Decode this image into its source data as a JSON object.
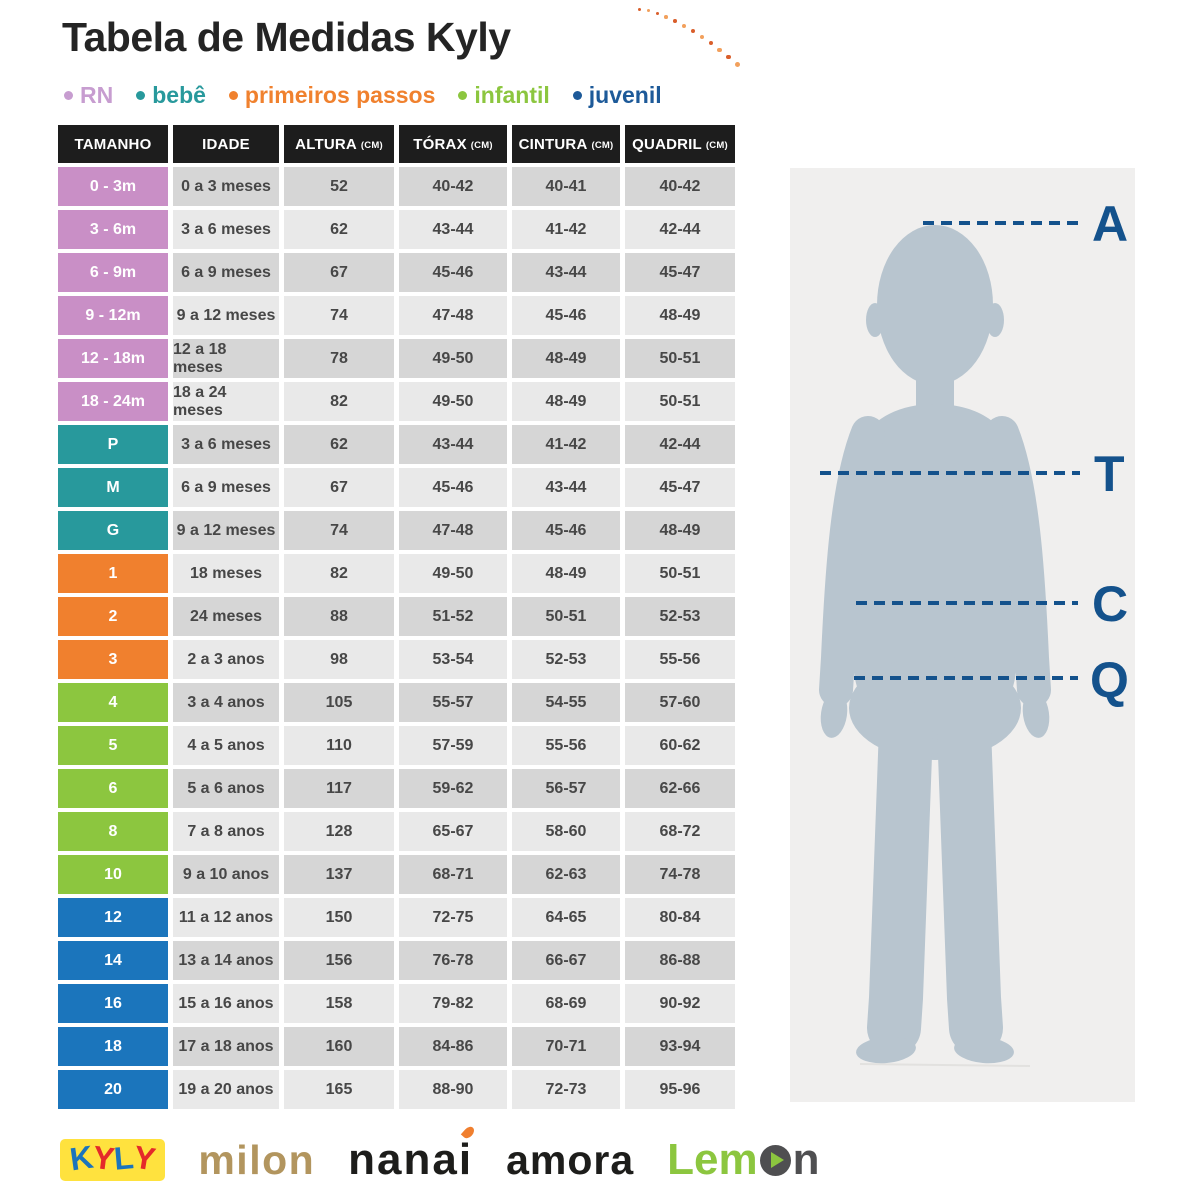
{
  "title": "Tabela de Medidas Kyly",
  "legend": [
    {
      "label": "RN",
      "color": "#c79dd0"
    },
    {
      "label": "bebê",
      "color": "#28999c"
    },
    {
      "label": "primeiros passos",
      "color": "#f0812e"
    },
    {
      "label": "infantil",
      "color": "#8cc63f"
    },
    {
      "label": "juvenil",
      "color": "#1d5a99"
    }
  ],
  "table": {
    "columns": [
      {
        "label": "TAMANHO",
        "unit": ""
      },
      {
        "label": "IDADE",
        "unit": ""
      },
      {
        "label": "ALTURA",
        "unit": "(CM)"
      },
      {
        "label": "TÓRAX",
        "unit": "(CM)"
      },
      {
        "label": "CINTURA",
        "unit": "(CM)"
      },
      {
        "label": "QUADRIL",
        "unit": "(CM)"
      }
    ],
    "group_colors": {
      "rn": "#c98fc6",
      "bebe": "#28999c",
      "pp": "#f0802e",
      "infantil": "#8cc63f",
      "juvenil": "#1b75bc"
    },
    "row_shades": {
      "dark": "#d6d6d6",
      "light": "#e9e9e9"
    },
    "rows": [
      {
        "size": "0 - 3m",
        "group": "rn",
        "idade": "0 a 3 meses",
        "altura": "52",
        "torax": "40-42",
        "cintura": "40-41",
        "quadril": "40-42"
      },
      {
        "size": "3 - 6m",
        "group": "rn",
        "idade": "3 a 6 meses",
        "altura": "62",
        "torax": "43-44",
        "cintura": "41-42",
        "quadril": "42-44"
      },
      {
        "size": "6 - 9m",
        "group": "rn",
        "idade": "6 a 9 meses",
        "altura": "67",
        "torax": "45-46",
        "cintura": "43-44",
        "quadril": "45-47"
      },
      {
        "size": "9 - 12m",
        "group": "rn",
        "idade": "9 a 12 meses",
        "altura": "74",
        "torax": "47-48",
        "cintura": "45-46",
        "quadril": "48-49"
      },
      {
        "size": "12 - 18m",
        "group": "rn",
        "idade": "12 a 18 meses",
        "altura": "78",
        "torax": "49-50",
        "cintura": "48-49",
        "quadril": "50-51"
      },
      {
        "size": "18 - 24m",
        "group": "rn",
        "idade": "18 a 24 meses",
        "altura": "82",
        "torax": "49-50",
        "cintura": "48-49",
        "quadril": "50-51"
      },
      {
        "size": "P",
        "group": "bebe",
        "idade": "3 a 6 meses",
        "altura": "62",
        "torax": "43-44",
        "cintura": "41-42",
        "quadril": "42-44"
      },
      {
        "size": "M",
        "group": "bebe",
        "idade": "6 a 9 meses",
        "altura": "67",
        "torax": "45-46",
        "cintura": "43-44",
        "quadril": "45-47"
      },
      {
        "size": "G",
        "group": "bebe",
        "idade": "9 a 12 meses",
        "altura": "74",
        "torax": "47-48",
        "cintura": "45-46",
        "quadril": "48-49"
      },
      {
        "size": "1",
        "group": "pp",
        "idade": "18 meses",
        "altura": "82",
        "torax": "49-50",
        "cintura": "48-49",
        "quadril": "50-51"
      },
      {
        "size": "2",
        "group": "pp",
        "idade": "24 meses",
        "altura": "88",
        "torax": "51-52",
        "cintura": "50-51",
        "quadril": "52-53"
      },
      {
        "size": "3",
        "group": "pp",
        "idade": "2 a 3 anos",
        "altura": "98",
        "torax": "53-54",
        "cintura": "52-53",
        "quadril": "55-56"
      },
      {
        "size": "4",
        "group": "infantil",
        "idade": "3 a 4 anos",
        "altura": "105",
        "torax": "55-57",
        "cintura": "54-55",
        "quadril": "57-60"
      },
      {
        "size": "5",
        "group": "infantil",
        "idade": "4 a 5 anos",
        "altura": "110",
        "torax": "57-59",
        "cintura": "55-56",
        "quadril": "60-62"
      },
      {
        "size": "6",
        "group": "infantil",
        "idade": "5 a 6 anos",
        "altura": "117",
        "torax": "59-62",
        "cintura": "56-57",
        "quadril": "62-66"
      },
      {
        "size": "8",
        "group": "infantil",
        "idade": "7 a 8 anos",
        "altura": "128",
        "torax": "65-67",
        "cintura": "58-60",
        "quadril": "68-72"
      },
      {
        "size": "10",
        "group": "infantil",
        "idade": "9 a 10 anos",
        "altura": "137",
        "torax": "68-71",
        "cintura": "62-63",
        "quadril": "74-78"
      },
      {
        "size": "12",
        "group": "juvenil",
        "idade": "11 a 12 anos",
        "altura": "150",
        "torax": "72-75",
        "cintura": "64-65",
        "quadril": "80-84"
      },
      {
        "size": "14",
        "group": "juvenil",
        "idade": "13 a 14 anos",
        "altura": "156",
        "torax": "76-78",
        "cintura": "66-67",
        "quadril": "86-88"
      },
      {
        "size": "16",
        "group": "juvenil",
        "idade": "15 a 16 anos",
        "altura": "158",
        "torax": "79-82",
        "cintura": "68-69",
        "quadril": "90-92"
      },
      {
        "size": "18",
        "group": "juvenil",
        "idade": "17 a 18 anos",
        "altura": "160",
        "torax": "84-86",
        "cintura": "70-71",
        "quadril": "93-94"
      },
      {
        "size": "20",
        "group": "juvenil",
        "idade": "19 a 20 anos",
        "altura": "165",
        "torax": "88-90",
        "cintura": "72-73",
        "quadril": "95-96"
      }
    ]
  },
  "figure": {
    "labels": [
      "A",
      "T",
      "C",
      "Q"
    ],
    "panel_color": "#f0efee",
    "silhouette_color": "#b8c5cf",
    "line_color": "#14528c"
  },
  "logos": {
    "kyly": {
      "box_color": "#ffe23e",
      "letters": [
        {
          "ch": "K",
          "color": "#1b74bc"
        },
        {
          "ch": "Y",
          "color": "#e42a2a"
        },
        {
          "ch": "L",
          "color": "#1b74bc"
        },
        {
          "ch": "Y",
          "color": "#e42a2a"
        }
      ]
    },
    "milon": {
      "text": "milon",
      "color": "#b2955e"
    },
    "nanai": {
      "text": "nanai",
      "color": "#1d1d1b",
      "accent_color": "#f07f2f"
    },
    "amora": {
      "text": "amora",
      "color": "#1d1d1b"
    },
    "lemon": {
      "parts": [
        {
          "text": "Lem",
          "color": "#8cc63f"
        },
        {
          "icon": "play-circle",
          "color": "#4f4f51",
          "arrow_color": "#8cc63f"
        },
        {
          "text": "n",
          "color": "#4f4f51"
        }
      ]
    }
  },
  "decoration": {
    "arc_dot_colors": [
      "#d95e2b",
      "#f2a05c"
    ]
  }
}
